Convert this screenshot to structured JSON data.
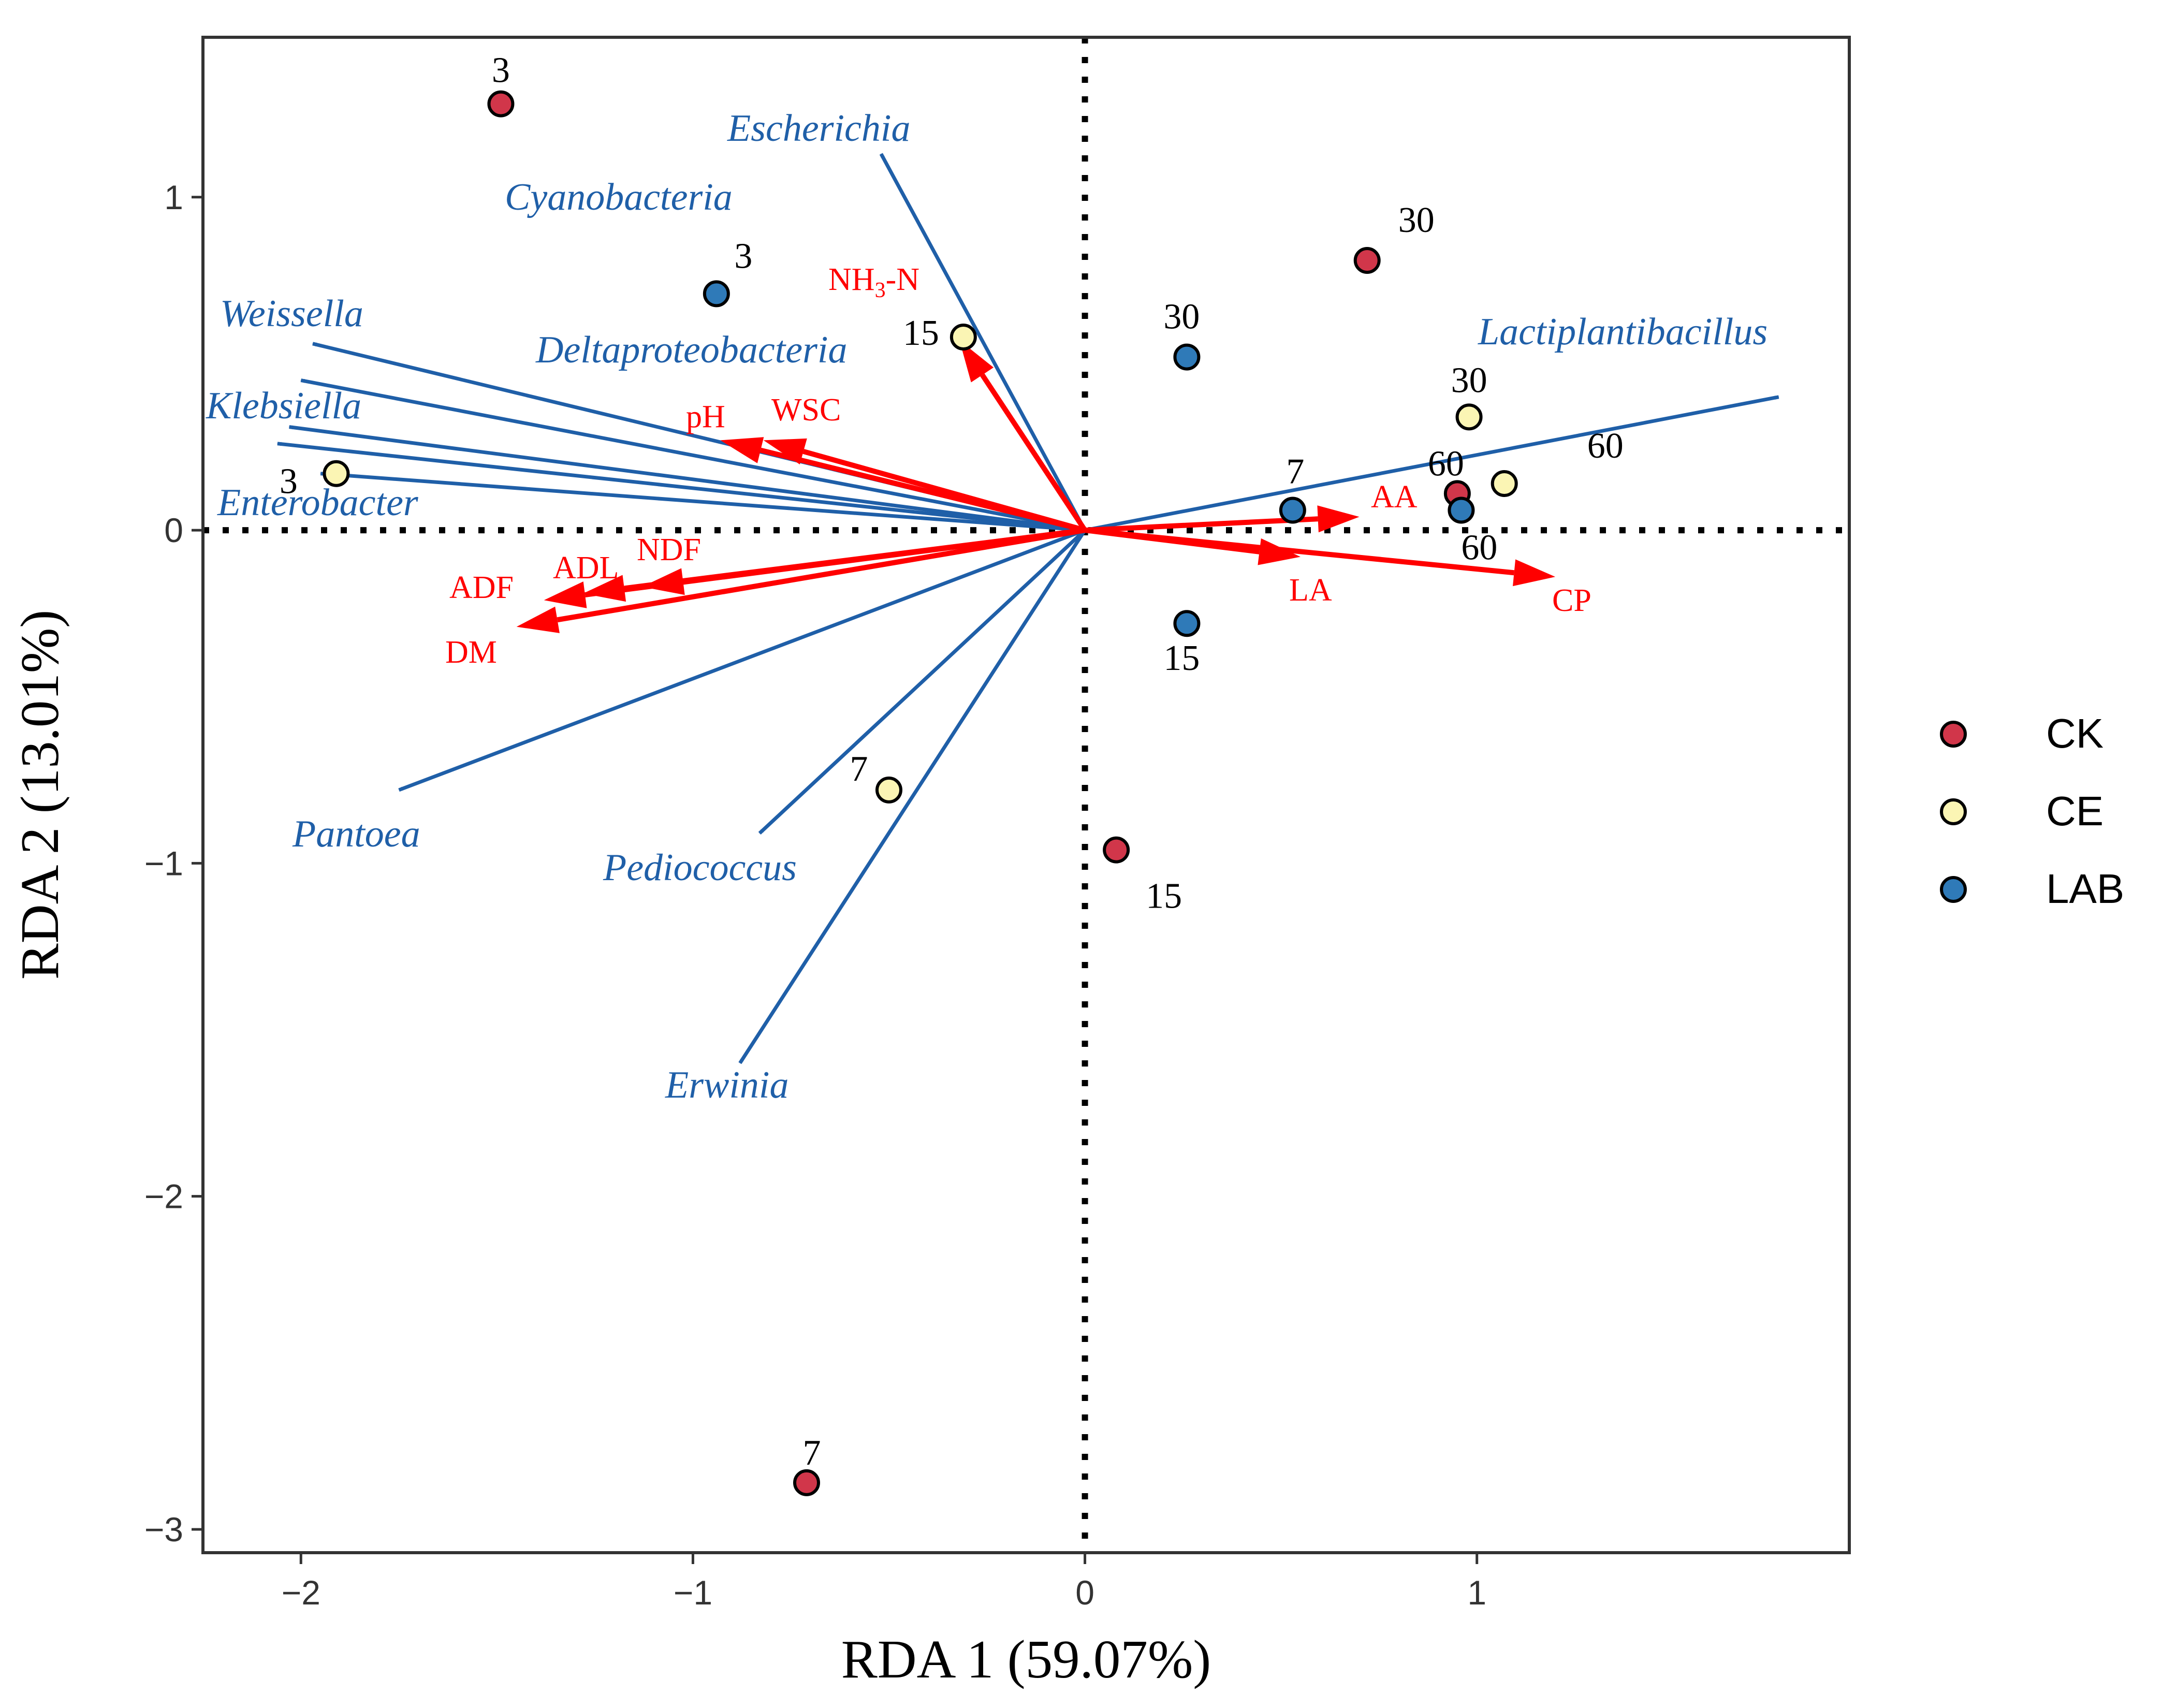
{
  "chart_data": {
    "type": "scatter",
    "subtype": "RDA biplot",
    "xlabel": "RDA 1 (59.07%)",
    "ylabel": "RDA 2 (13.01%)",
    "xlim": [
      -2.25,
      1.95
    ],
    "ylim": [
      -3.07,
      1.48
    ],
    "xticks": [
      {
        "value": -2,
        "label": "−2"
      },
      {
        "value": -1,
        "label": "−1"
      },
      {
        "value": 0,
        "label": "0"
      },
      {
        "value": 1,
        "label": "1"
      }
    ],
    "yticks": [
      {
        "value": -3,
        "label": "−3"
      },
      {
        "value": -2,
        "label": "−2"
      },
      {
        "value": -1,
        "label": "−1"
      },
      {
        "value": 0,
        "label": "0"
      },
      {
        "value": 1,
        "label": "1"
      }
    ],
    "zero_lines": "dotted",
    "legend_position": "right",
    "groups": [
      {
        "name": "CK",
        "color": "#d1364a"
      },
      {
        "name": "CE",
        "color": "#fbf5b4"
      },
      {
        "name": "LAB",
        "color": "#2f7ab8"
      }
    ],
    "samples": [
      {
        "group": "CK",
        "label": "3",
        "x": -1.49,
        "y": 1.28
      },
      {
        "group": "CK",
        "label": "7",
        "x": -0.71,
        "y": -2.86
      },
      {
        "group": "CK",
        "label": "15",
        "x": 0.08,
        "y": -0.96
      },
      {
        "group": "CK",
        "label": "30",
        "x": 0.72,
        "y": 0.81
      },
      {
        "group": "CK",
        "label": "60",
        "x": 0.95,
        "y": 0.11
      },
      {
        "group": "CE",
        "label": "3",
        "x": -1.91,
        "y": 0.17
      },
      {
        "group": "CE",
        "label": "7",
        "x": -0.5,
        "y": -0.78
      },
      {
        "group": "CE",
        "label": "15",
        "x": -0.31,
        "y": 0.58
      },
      {
        "group": "CE",
        "label": "30",
        "x": 0.98,
        "y": 0.34
      },
      {
        "group": "CE",
        "label": "60",
        "x": 1.07,
        "y": 0.14
      },
      {
        "group": "LAB",
        "label": "3",
        "x": -0.94,
        "y": 0.71
      },
      {
        "group": "LAB",
        "label": "7",
        "x": 0.53,
        "y": 0.06
      },
      {
        "group": "LAB",
        "label": "15",
        "x": 0.26,
        "y": -0.28
      },
      {
        "group": "LAB",
        "label": "30",
        "x": 0.26,
        "y": 0.52
      },
      {
        "group": "LAB",
        "label": "60",
        "x": 0.96,
        "y": 0.06
      }
    ],
    "species_vectors": {
      "color": "#1f5fa8",
      "items": [
        {
          "name": "Escherichia",
          "x": -0.52,
          "y": 1.13
        },
        {
          "name": "Cyanobacteria",
          "x": -2.03,
          "y": 0.31
        },
        {
          "name": "Weissella",
          "x": -1.97,
          "y": 0.56
        },
        {
          "name": "Deltaproteobacteria",
          "x": -2.0,
          "y": 0.45
        },
        {
          "name": "Klebsiella",
          "x": -2.06,
          "y": 0.26
        },
        {
          "name": "Enterobacter",
          "x": -1.95,
          "y": 0.17
        },
        {
          "name": "Pantoea",
          "x": -1.75,
          "y": -0.78
        },
        {
          "name": "Pediococcus",
          "x": -0.83,
          "y": -0.91
        },
        {
          "name": "Erwinia",
          "x": -0.88,
          "y": -1.6
        },
        {
          "name": "Lactiplantibacillus",
          "x": 1.77,
          "y": 0.4
        }
      ]
    },
    "env_vectors": {
      "color": "#ff0000",
      "items": [
        {
          "name": "NH3-N",
          "base": "NH",
          "sub": "3",
          "tail": "-N",
          "x": -0.32,
          "y": 0.57
        },
        {
          "name": "pH",
          "x": -0.93,
          "y": 0.27
        },
        {
          "name": "WSC",
          "x": -0.82,
          "y": 0.27
        },
        {
          "name": "NDF",
          "x": -1.13,
          "y": -0.17
        },
        {
          "name": "ADL",
          "x": -1.28,
          "y": -0.19
        },
        {
          "name": "ADF",
          "x": -1.38,
          "y": -0.21
        },
        {
          "name": "DM",
          "x": -1.45,
          "y": -0.29
        },
        {
          "name": "AA",
          "x": 0.7,
          "y": 0.04
        },
        {
          "name": "LA",
          "x": 0.55,
          "y": -0.08
        },
        {
          "name": "CP",
          "x": 1.2,
          "y": -0.14
        }
      ]
    }
  }
}
